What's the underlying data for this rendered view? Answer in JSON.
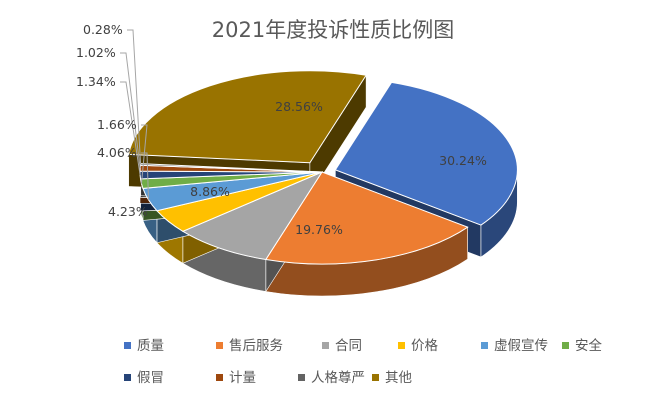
{
  "chart_data": {
    "type": "pie",
    "title": "2021年度投诉性质比例图",
    "series": [
      {
        "name": "质量",
        "value": 30.24,
        "label": "30.24%",
        "color": "#4472C4"
      },
      {
        "name": "售后服务",
        "value": 19.76,
        "label": "19.76%",
        "color": "#ED7D31"
      },
      {
        "name": "合同",
        "value": 8.86,
        "label": "8.86%",
        "color": "#A5A5A5"
      },
      {
        "name": "价格",
        "value": 4.23,
        "label": "4.23%",
        "color": "#FFC000"
      },
      {
        "name": "虚假宣传",
        "value": 4.06,
        "label": "4.06%",
        "color": "#5B9BD5"
      },
      {
        "name": "安全",
        "value": 1.66,
        "label": "1.66%",
        "color": "#70AD47"
      },
      {
        "name": "假冒",
        "value": 1.34,
        "label": "1.34%",
        "color": "#264478"
      },
      {
        "name": "计量",
        "value": 1.02,
        "label": "1.02%",
        "color": "#9E480E"
      },
      {
        "name": "人格尊严",
        "value": 0.28,
        "label": "0.28%",
        "color": "#636363"
      },
      {
        "name": "其他",
        "value": 28.56,
        "label": "28.56%",
        "color": "#997300"
      }
    ],
    "legend_position": "bottom",
    "three_d": true
  }
}
